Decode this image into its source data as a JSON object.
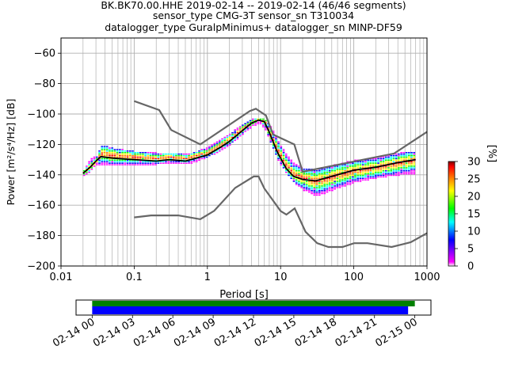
{
  "header": {
    "title_line1": "BK.BK70.00.HHE   2019-02-14 -- 2019-02-14  (46/46 segments)",
    "title_line2": "sensor_type CMG-3T sensor_sn T310034",
    "title_line3": "datalogger_type GuralpMinimus+ datalogger_sn MINP-DF59"
  },
  "chart_data": [
    {
      "type": "heatmap",
      "xlabel": "Period [s]",
      "ylabel": "Power [m²/s⁴/Hz] [dB]",
      "xscale": "log",
      "xlim": [
        0.01,
        1000
      ],
      "ylim": [
        -200,
        -50
      ],
      "x_ticks": [
        0.01,
        0.1,
        1,
        10,
        100,
        1000
      ],
      "x_tick_labels": [
        "0.01",
        "0.1",
        "1",
        "10",
        "100",
        "1000"
      ],
      "y_ticks": [
        -200,
        -180,
        -160,
        -140,
        -120,
        -100,
        -80,
        -60
      ],
      "y_tick_labels": [
        "−200",
        "−180",
        "−160",
        "−140",
        "−120",
        "−100",
        "−80",
        "−60"
      ],
      "grid": true,
      "colorbar": {
        "label": "[%]",
        "range": [
          0,
          30
        ],
        "ticks": [
          0,
          5,
          10,
          15,
          20,
          25,
          30
        ],
        "tick_labels": [
          "0",
          "5",
          "10",
          "15",
          "20",
          "25",
          "30"
        ],
        "colormap": [
          "#ffffff",
          "#ff00ff",
          "#0000ff",
          "#00ffff",
          "#00ff00",
          "#ffff00",
          "#ff8000",
          "#ff0000",
          "#800000"
        ]
      },
      "psd_band": [
        {
          "period": 0.02,
          "low": -141,
          "high": -137,
          "mode": -139
        },
        {
          "period": 0.025,
          "low": -137,
          "high": -130,
          "mode": -135
        },
        {
          "period": 0.03,
          "low": -133,
          "high": -128,
          "mode": -131
        },
        {
          "period": 0.035,
          "low": -134,
          "high": -121,
          "mode": -127
        },
        {
          "period": 0.05,
          "low": -134,
          "high": -123,
          "mode": -128
        },
        {
          "period": 0.1,
          "low": -134,
          "high": -125,
          "mode": -129
        },
        {
          "period": 0.2,
          "low": -133,
          "high": -126,
          "mode": -130
        },
        {
          "period": 0.3,
          "low": -133,
          "high": -126,
          "mode": -129
        },
        {
          "period": 0.5,
          "low": -133,
          "high": -127,
          "mode": -130
        },
        {
          "period": 0.7,
          "low": -131,
          "high": -125,
          "mode": -128
        },
        {
          "period": 1.0,
          "low": -128,
          "high": -122,
          "mode": -126
        },
        {
          "period": 1.5,
          "low": -124,
          "high": -117,
          "mode": -121
        },
        {
          "period": 2.0,
          "low": -120,
          "high": -113,
          "mode": -117
        },
        {
          "period": 3.0,
          "low": -113,
          "high": -107,
          "mode": -110
        },
        {
          "period": 4.0,
          "low": -108,
          "high": -104,
          "mode": -106
        },
        {
          "period": 5.0,
          "low": -106,
          "high": -103,
          "mode": -104
        },
        {
          "period": 6.0,
          "low": -110,
          "high": -104,
          "mode": -106
        },
        {
          "period": 7.0,
          "low": -118,
          "high": -108,
          "mode": -114
        },
        {
          "period": 9.0,
          "low": -130,
          "high": -118,
          "mode": -125
        },
        {
          "period": 12.0,
          "low": -140,
          "high": -128,
          "mode": -135
        },
        {
          "period": 15.0,
          "low": -145,
          "high": -133,
          "mode": -140
        },
        {
          "period": 20.0,
          "low": -150,
          "high": -136,
          "mode": -143
        },
        {
          "period": 30.0,
          "low": -154,
          "high": -137,
          "mode": -145
        },
        {
          "period": 50.0,
          "low": -150,
          "high": -134,
          "mode": -142
        },
        {
          "period": 100.0,
          "low": -145,
          "high": -131,
          "mode": -138
        },
        {
          "period": 200.0,
          "low": -142,
          "high": -129,
          "mode": -136
        },
        {
          "period": 400.0,
          "low": -140,
          "high": -126,
          "mode": -133
        },
        {
          "period": 700.0,
          "low": -139,
          "high": -125,
          "mode": -131
        }
      ],
      "mode_line": {
        "period": [
          0.02,
          0.025,
          0.03,
          0.035,
          0.05,
          0.1,
          0.2,
          0.3,
          0.5,
          0.7,
          1,
          1.5,
          2,
          3,
          4,
          5,
          6,
          7,
          9,
          12,
          15,
          20,
          30,
          50,
          100,
          200,
          400,
          700
        ],
        "power": [
          -139,
          -135,
          -131,
          -128,
          -129,
          -130,
          -131,
          -130,
          -131,
          -129,
          -127,
          -122,
          -118,
          -111,
          -106,
          -104,
          -105,
          -112,
          -125,
          -136,
          -141,
          -143,
          -144,
          -141,
          -137,
          -135,
          -132,
          -130
        ]
      },
      "noise_models": [
        {
          "name": "",
          "period": [
            0.1,
            0.22,
            0.32,
            0.8,
            3.8,
            4.6,
            6.3,
            7.9,
            15.4,
            20.0,
            354.8,
            10000
          ],
          "power": [
            -91.5,
            -97.4,
            -110.5,
            -120.0,
            -98.0,
            -96.5,
            -101.0,
            -113.5,
            -120.0,
            -138.0,
            -126.0,
            -80.1
          ]
        },
        {
          "name": "",
          "period": [
            0.1,
            0.17,
            0.4,
            0.8,
            1.24,
            2.4,
            4.3,
            5.0,
            6.0,
            10.0,
            12.0,
            15.6,
            21.9,
            31.6,
            45.0,
            70.0,
            101.0,
            154.0,
            328.0,
            600.0,
            10000
          ],
          "power": [
            -168.0,
            -166.7,
            -166.7,
            -169.2,
            -163.7,
            -148.6,
            -141.1,
            -141.1,
            -149.0,
            -163.8,
            -166.2,
            -162.1,
            -177.5,
            -185.0,
            -187.5,
            -187.5,
            -185.0,
            -185.0,
            -187.5,
            -184.4,
            -151.5
          ]
        }
      ]
    },
    {
      "type": "bar",
      "x_tick_labels": [
        "02-14 00",
        "02-14 03",
        "02-14 06",
        "02-14 09",
        "02-14 12",
        "02-14 15",
        "02-14 18",
        "02-14 21",
        "02-15 00"
      ],
      "xlim_hours": [
        -1.2,
        25.2
      ],
      "bars": [
        {
          "name": "",
          "color": "#008000",
          "start_hours": 0.0,
          "end_hours": 24.0
        },
        {
          "name": "",
          "color": "#0000ff",
          "start_hours": 0.0,
          "end_hours": 23.5
        }
      ]
    }
  ]
}
